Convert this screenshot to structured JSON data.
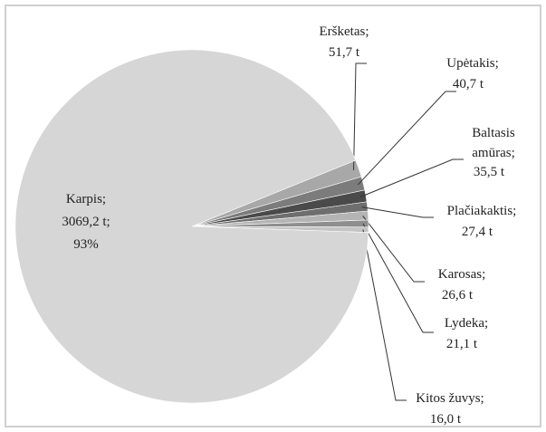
{
  "chart_data": {
    "type": "pie",
    "categories": [
      "Eršketas;",
      "Upėtakis;",
      "Baltasis amūras;",
      "Plačiakaktis;",
      "Karosas;",
      "Lydeka;",
      "Kitos žuvys;",
      "Karpis;"
    ],
    "values": [
      51.7,
      40.7,
      35.5,
      27.4,
      26.6,
      21.1,
      16.0,
      3069.2
    ],
    "value_labels": [
      "51,7 t",
      "40,7 t",
      "35,5 t",
      "27,4 t",
      "26,6 t",
      "21,1 t",
      "16,0 t",
      "3069,2 t;"
    ],
    "colors": [
      "#a8a8a8",
      "#7c7c7c",
      "#4a4a4a",
      "#6e6e6e",
      "#b4b4b4",
      "#8e8e8e",
      "#c4c4c4",
      "#d6d6d6"
    ],
    "annotation": "93%"
  }
}
